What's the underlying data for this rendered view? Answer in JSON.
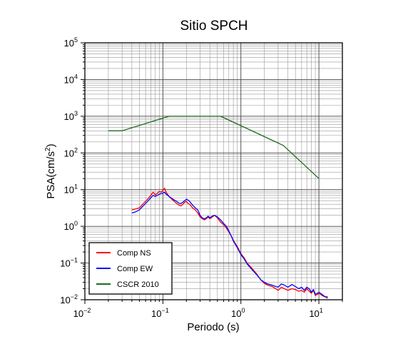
{
  "chart_data": {
    "type": "line",
    "title": "Sitio SPCH",
    "xlabel": "Periodo (s)",
    "ylabel_base": "PSA(cm/s",
    "ylabel_sup": "2",
    "ylabel_close": ")",
    "x_scale": "log",
    "y_scale": "log",
    "xlim": [
      0.01,
      20
    ],
    "ylim": [
      0.01,
      100000
    ],
    "grid": true,
    "legend_position": "bottom-left",
    "x_ticks": [
      {
        "base": "10",
        "exp": "−2",
        "value": 0.01
      },
      {
        "base": "10",
        "exp": "−1",
        "value": 0.1
      },
      {
        "base": "10",
        "exp": "0",
        "value": 1
      },
      {
        "base": "10",
        "exp": "1",
        "value": 10
      }
    ],
    "y_ticks": [
      {
        "base": "10",
        "exp": "−2",
        "value": 0.01
      },
      {
        "base": "10",
        "exp": "−1",
        "value": 0.1
      },
      {
        "base": "10",
        "exp": "0",
        "value": 1
      },
      {
        "base": "10",
        "exp": "1",
        "value": 10
      },
      {
        "base": "10",
        "exp": "2",
        "value": 100
      },
      {
        "base": "10",
        "exp": "3",
        "value": 1000
      },
      {
        "base": "10",
        "exp": "4",
        "value": 10000
      },
      {
        "base": "10",
        "exp": "5",
        "value": 100000
      }
    ],
    "series": [
      {
        "name": "Comp NS",
        "color": "#ff0000",
        "x": [
          0.04,
          0.045,
          0.05,
          0.055,
          0.06,
          0.065,
          0.07,
          0.075,
          0.08,
          0.085,
          0.09,
          0.095,
          0.1,
          0.105,
          0.11,
          0.12,
          0.13,
          0.14,
          0.15,
          0.16,
          0.17,
          0.18,
          0.19,
          0.2,
          0.21,
          0.22,
          0.24,
          0.26,
          0.28,
          0.3,
          0.32,
          0.34,
          0.36,
          0.38,
          0.4,
          0.43,
          0.46,
          0.5,
          0.55,
          0.6,
          0.65,
          0.7,
          0.75,
          0.8,
          0.9,
          1.0,
          1.1,
          1.2,
          1.4,
          1.6,
          1.8,
          2.0,
          2.2,
          2.5,
          2.8,
          3.0,
          3.3,
          3.6,
          4.0,
          4.5,
          5.0,
          5.5,
          6.0,
          6.5,
          7.0,
          7.5,
          8.0,
          8.5,
          9.0,
          10.0,
          11.0,
          12.0,
          13.0
        ],
        "y": [
          2.8,
          3.0,
          3.2,
          4.0,
          4.8,
          5.8,
          7.0,
          8.5,
          7.2,
          8.0,
          9.0,
          8.5,
          9.5,
          11.0,
          8.5,
          6.5,
          5.5,
          4.8,
          4.2,
          3.8,
          3.6,
          4.0,
          4.5,
          4.8,
          4.2,
          4.0,
          3.2,
          2.8,
          2.3,
          1.8,
          1.6,
          1.5,
          1.6,
          1.8,
          1.6,
          1.8,
          2.0,
          1.7,
          1.3,
          1.1,
          0.9,
          0.7,
          0.55,
          0.42,
          0.28,
          0.18,
          0.14,
          0.1,
          0.07,
          0.05,
          0.035,
          0.028,
          0.025,
          0.023,
          0.02,
          0.018,
          0.022,
          0.02,
          0.018,
          0.02,
          0.019,
          0.017,
          0.018,
          0.016,
          0.02,
          0.017,
          0.015,
          0.018,
          0.013,
          0.015,
          0.013,
          0.012,
          0.011
        ]
      },
      {
        "name": "Comp EW",
        "color": "#0000ff",
        "x": [
          0.04,
          0.045,
          0.05,
          0.055,
          0.06,
          0.065,
          0.07,
          0.075,
          0.08,
          0.085,
          0.09,
          0.095,
          0.1,
          0.105,
          0.11,
          0.12,
          0.13,
          0.14,
          0.15,
          0.16,
          0.17,
          0.18,
          0.19,
          0.2,
          0.21,
          0.22,
          0.24,
          0.26,
          0.28,
          0.3,
          0.32,
          0.34,
          0.36,
          0.38,
          0.4,
          0.43,
          0.46,
          0.5,
          0.55,
          0.6,
          0.65,
          0.7,
          0.75,
          0.8,
          0.9,
          1.0,
          1.1,
          1.2,
          1.4,
          1.6,
          1.8,
          2.0,
          2.2,
          2.5,
          2.8,
          3.0,
          3.3,
          3.6,
          4.0,
          4.5,
          5.0,
          5.5,
          6.0,
          6.5,
          7.0,
          7.5,
          8.0,
          8.5,
          9.0,
          10.0,
          11.0,
          12.0,
          13.0
        ],
        "y": [
          2.3,
          2.5,
          2.8,
          3.5,
          4.2,
          5.0,
          6.0,
          7.0,
          6.5,
          7.0,
          7.5,
          7.8,
          8.0,
          8.5,
          7.5,
          6.5,
          5.8,
          5.2,
          4.8,
          4.3,
          4.2,
          4.5,
          5.0,
          5.5,
          5.2,
          4.8,
          3.8,
          3.2,
          2.8,
          2.0,
          1.7,
          1.6,
          1.7,
          1.9,
          1.7,
          1.9,
          2.0,
          1.8,
          1.5,
          1.2,
          1.0,
          0.75,
          0.55,
          0.4,
          0.26,
          0.17,
          0.13,
          0.095,
          0.065,
          0.048,
          0.035,
          0.03,
          0.027,
          0.025,
          0.023,
          0.022,
          0.027,
          0.025,
          0.022,
          0.026,
          0.023,
          0.02,
          0.022,
          0.018,
          0.022,
          0.02,
          0.016,
          0.019,
          0.014,
          0.016,
          0.014,
          0.012,
          0.012
        ]
      },
      {
        "name": "CSCR 2010",
        "color": "#1e6b1e",
        "x": [
          0.02,
          0.03,
          0.12,
          0.55,
          3.5,
          10.0
        ],
        "y": [
          400,
          400,
          1000,
          1000,
          160,
          20
        ]
      }
    ]
  }
}
